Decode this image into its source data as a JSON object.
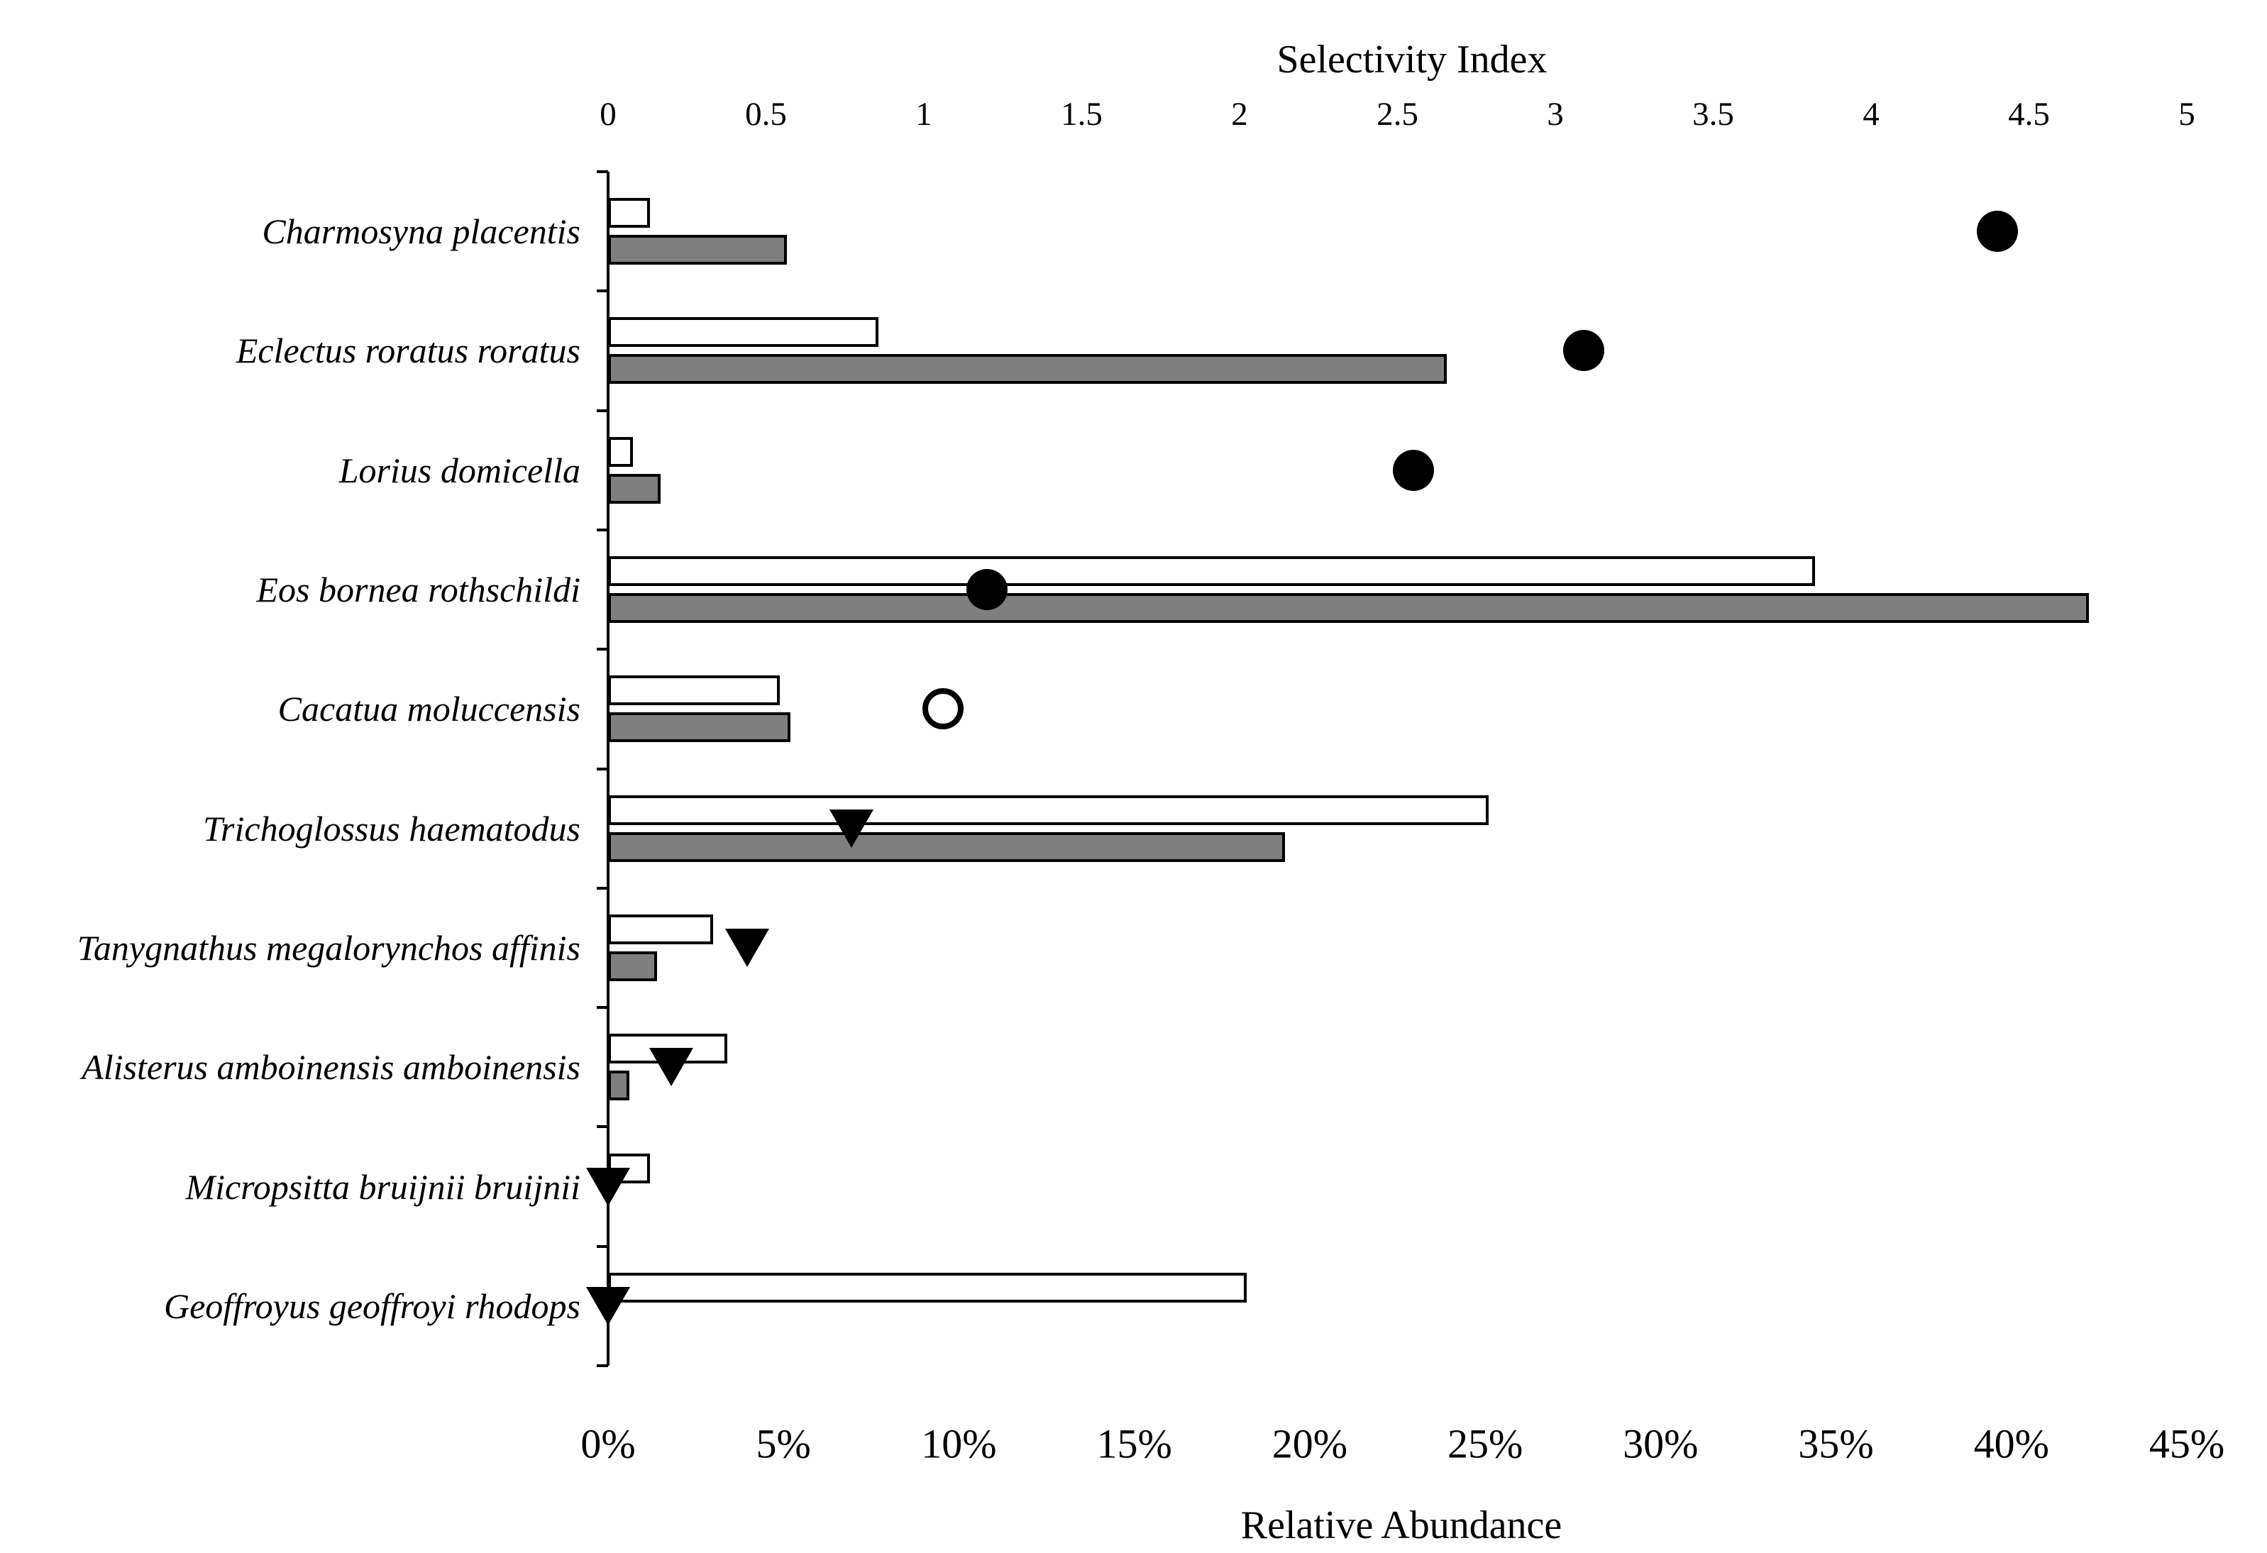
{
  "figure": {
    "background": "#ffffff",
    "ink_color": "#000000"
  },
  "chart_data": {
    "type": "bar",
    "orientation": "horizontal",
    "title": "",
    "top_axis": {
      "label": "Selectivity Index",
      "min": 0,
      "max": 5,
      "step": 0.5,
      "tick_labels": [
        "0",
        "0.5",
        "1",
        "1.5",
        "2",
        "2.5",
        "3",
        "3.5",
        "4",
        "4.5",
        "5"
      ]
    },
    "bottom_axis": {
      "label": "Relative Abundance",
      "min": 0,
      "max": 45,
      "step": 5,
      "tick_labels": [
        "0%",
        "5%",
        "10%",
        "15%",
        "20%",
        "25%",
        "30%",
        "35%",
        "40%",
        "45%"
      ]
    },
    "categories": [
      "Charmosyna placentis",
      "Eclectus roratus roratus",
      "Lorius domicella",
      "Eos bornea rothschildi",
      "Cacatua moluccensis",
      "Trichoglossus haematodus",
      "Tanygnathus megalorynchos affinis",
      "Alisterus amboinensis amboinensis",
      "Micropsitta bruijnii bruijnii",
      "Geoffroyus geoffroyi rhodops"
    ],
    "series": [
      {
        "name": "Relative abundance (white bars)",
        "axis": "bottom",
        "unit": "%",
        "fill": "#ffffff",
        "stroke": "#000000",
        "values": [
          1.2,
          7.7,
          0.7,
          34.4,
          4.9,
          25.1,
          3.0,
          3.4,
          1.2,
          18.2
        ]
      },
      {
        "name": "Relative abundance (gray bars)",
        "axis": "bottom",
        "unit": "%",
        "fill": "#7f7f7f",
        "stroke": "#000000",
        "values": [
          5.1,
          23.9,
          1.5,
          42.2,
          5.2,
          19.3,
          1.4,
          0.6,
          0,
          0
        ]
      },
      {
        "name": "Selectivity index (markers)",
        "axis": "top",
        "unit": "index",
        "fill": "#000000",
        "values": [
          4.4,
          3.09,
          2.55,
          1.2,
          1.06,
          0.77,
          0.44,
          0.2,
          0,
          0
        ],
        "marker_shapes": [
          "filled-circle",
          "filled-circle",
          "filled-circle",
          "filled-circle",
          "open-circle",
          "filled-triangle-down",
          "filled-triangle-down",
          "filled-triangle-down",
          "filled-triangle-down",
          "filled-triangle-down"
        ]
      }
    ],
    "layout_hints": {
      "grid": false,
      "legend": "none",
      "top_xlim": [
        0,
        5
      ],
      "bottom_xlim": [
        0,
        45
      ],
      "category_labels_position": "left",
      "category_labels_style": "italic"
    }
  }
}
